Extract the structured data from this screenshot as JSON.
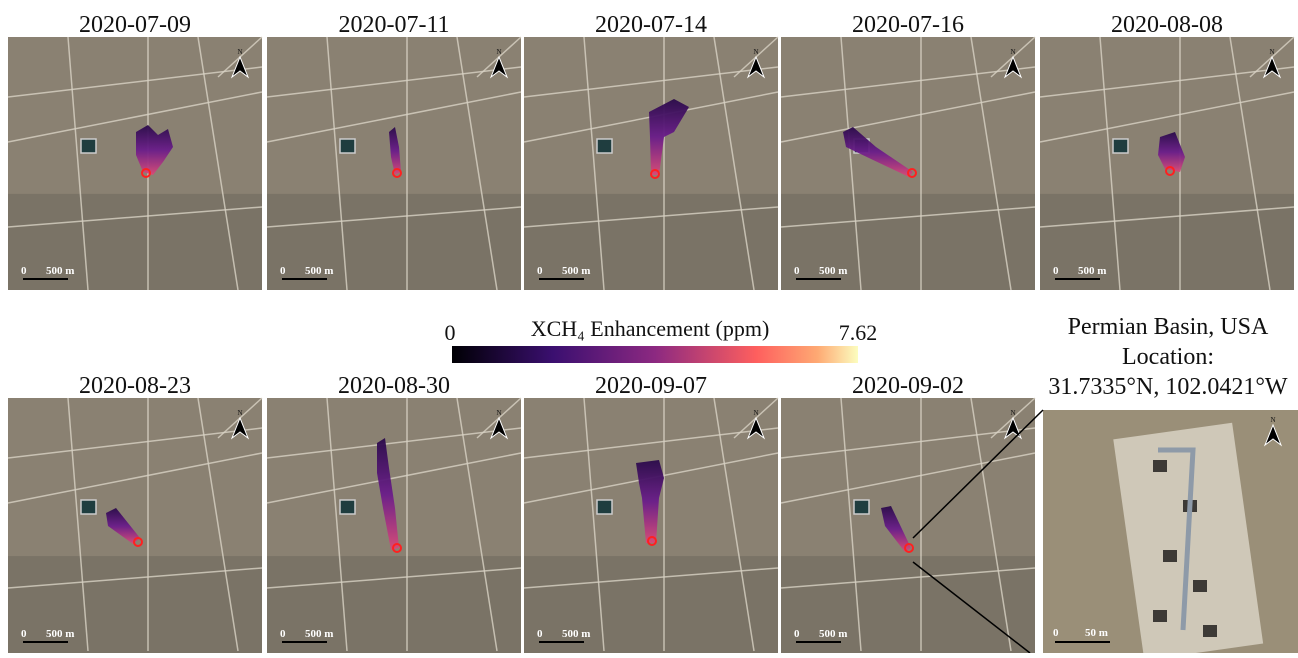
{
  "panels": [
    {
      "date": "2020-07-09"
    },
    {
      "date": "2020-07-11"
    },
    {
      "date": "2020-07-14"
    },
    {
      "date": "2020-07-16"
    },
    {
      "date": "2020-08-08"
    },
    {
      "date": "2020-08-23"
    },
    {
      "date": "2020-08-30"
    },
    {
      "date": "2020-09-07"
    },
    {
      "date": "2020-09-02"
    }
  ],
  "scale_bar": {
    "start": "0",
    "label": "500 m"
  },
  "north_label": "N",
  "colorbar": {
    "label": "XCH₄ Enhancement (ppm)",
    "min": 0,
    "max": 7.62
  },
  "location": {
    "site": "Permian Basin, USA",
    "heading": "Location:",
    "coords": "31.7335°N, 102.0421°W"
  },
  "inset": {
    "scale_start": "0",
    "scale_label": "50 m"
  }
}
